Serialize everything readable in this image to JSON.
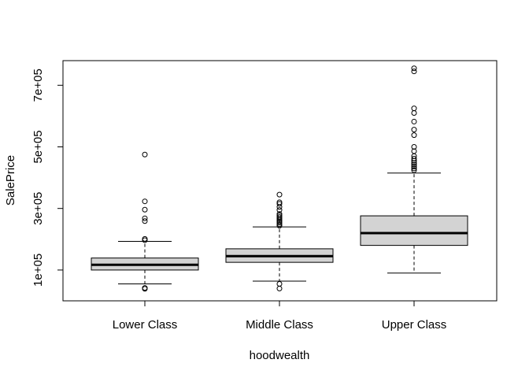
{
  "chart_data": {
    "type": "box",
    "xlabel": "hoodwealth",
    "ylabel": "SalePrice",
    "categories": [
      "Lower Class",
      "Middle Class",
      "Upper Class"
    ],
    "ylim": [
      0,
      780000
    ],
    "yticks": [
      100000,
      300000,
      500000,
      700000
    ],
    "ytick_labels": [
      "1e+05",
      "3e+05",
      "5e+05",
      "7e+05"
    ],
    "grid": false,
    "box_fill": "#d3d3d3",
    "boxes": [
      {
        "category": "Lower Class",
        "whisker_low": 55000,
        "q1": 100000,
        "median": 117000,
        "q3": 139000,
        "whisker_high": 193000,
        "outliers": [
          39000,
          42000,
          197000,
          201000,
          259000,
          268000,
          296000,
          323000,
          475000
        ]
      },
      {
        "category": "Middle Class",
        "whisker_low": 64000,
        "q1": 125000,
        "median": 145000,
        "q3": 169000,
        "whisker_high": 240000,
        "outliers": [
          40000,
          55000,
          244000,
          249000,
          254000,
          258000,
          262000,
          267000,
          272000,
          277000,
          282000,
          295000,
          305000,
          315000,
          320000,
          345000
        ]
      },
      {
        "category": "Upper Class",
        "whisker_low": 90000,
        "q1": 180000,
        "median": 220000,
        "q3": 276000,
        "whisker_high": 415000,
        "outliers": [
          424000,
          430000,
          436000,
          442000,
          448000,
          455000,
          462000,
          470000,
          486000,
          500000,
          538000,
          556000,
          582000,
          610000,
          625000,
          745000,
          755000
        ]
      }
    ]
  }
}
